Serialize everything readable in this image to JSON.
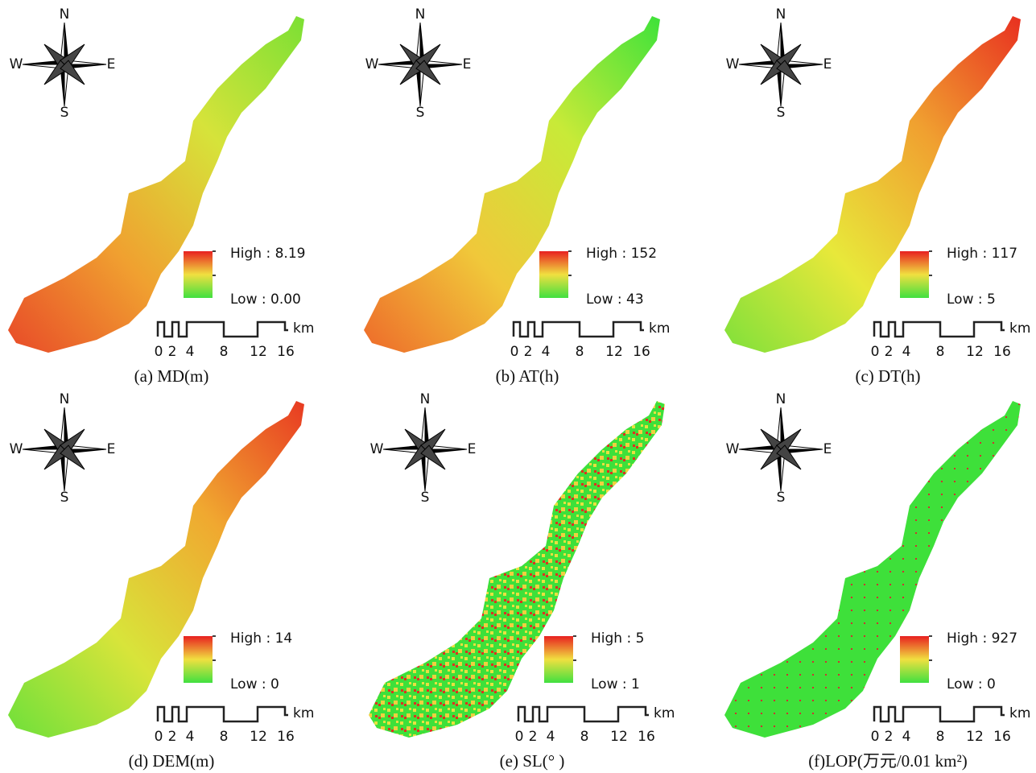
{
  "compass": {
    "n": "N",
    "s": "S",
    "e": "E",
    "w": "W"
  },
  "scale_bar": {
    "ticks": [
      "0",
      "2",
      "4",
      "8",
      "12",
      "16"
    ],
    "unit": "km"
  },
  "panels": [
    {
      "caption": "(a) MD(m)",
      "high": "High : 8.19",
      "low": "Low : 0.00"
    },
    {
      "caption": "(b) AT(h)",
      "high": "High : 152",
      "low": "Low : 43"
    },
    {
      "caption": "(c) DT(h)",
      "high": "High : 117",
      "low": "Low : 5"
    },
    {
      "caption": "(d) DEM(m)",
      "high": "High : 14",
      "low": "Low : 0"
    },
    {
      "caption": "(e) SL(° )",
      "high": "High : 5",
      "low": "Low : 1"
    },
    {
      "caption": "(f)LOP(万元/0.01 km²)",
      "high": "High : 927",
      "low": "Low : 0"
    }
  ]
}
